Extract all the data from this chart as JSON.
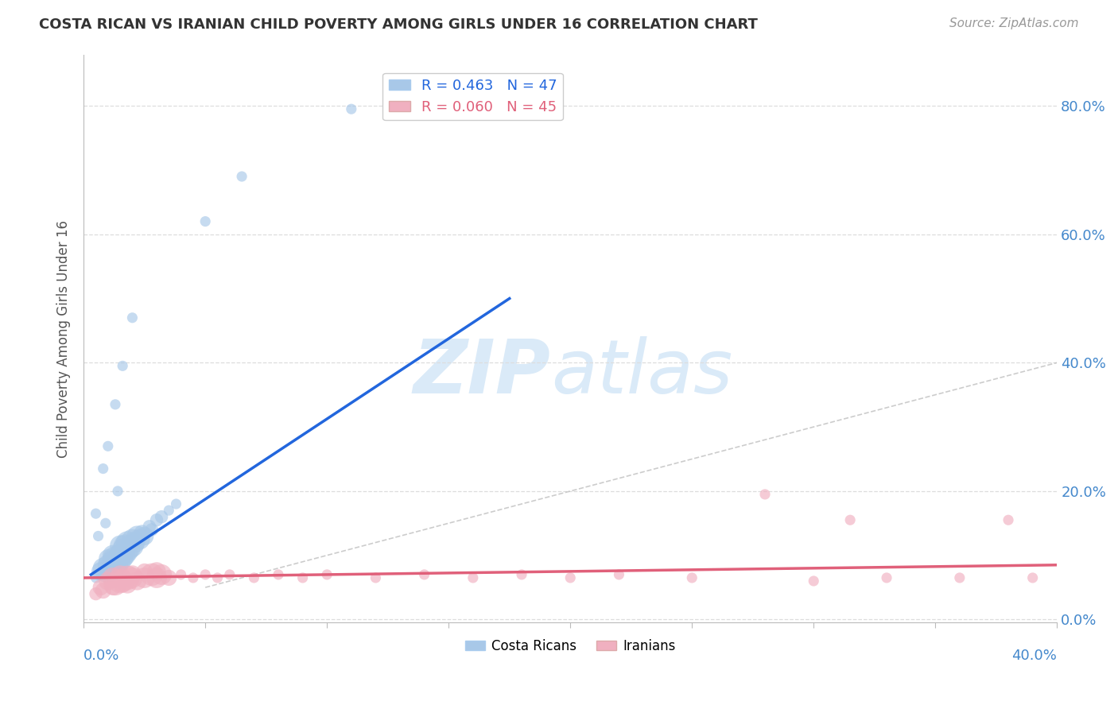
{
  "title": "COSTA RICAN VS IRANIAN CHILD POVERTY AMONG GIRLS UNDER 16 CORRELATION CHART",
  "source": "Source: ZipAtlas.com",
  "ylabel": "Child Poverty Among Girls Under 16",
  "ytick_values": [
    0.0,
    0.2,
    0.4,
    0.6,
    0.8
  ],
  "xlim": [
    0.0,
    0.4
  ],
  "ylim": [
    -0.005,
    0.88
  ],
  "costa_rican_color": "#a8c8e8",
  "iranian_color": "#f0b0c0",
  "costa_rican_line_color": "#2266dd",
  "iranian_line_color": "#e0607a",
  "diag_line_color": "#c0c0c0",
  "watermark_zip": "ZIP",
  "watermark_atlas": "atlas",
  "watermark_color": "#daeaf8",
  "background_color": "#ffffff",
  "grid_color": "#dddddd",
  "costa_ricans_scatter": [
    [
      0.005,
      0.065
    ],
    [
      0.007,
      0.075
    ],
    [
      0.008,
      0.08
    ],
    [
      0.009,
      0.07
    ],
    [
      0.01,
      0.085
    ],
    [
      0.01,
      0.095
    ],
    [
      0.011,
      0.075
    ],
    [
      0.012,
      0.09
    ],
    [
      0.012,
      0.1
    ],
    [
      0.013,
      0.08
    ],
    [
      0.013,
      0.095
    ],
    [
      0.014,
      0.085
    ],
    [
      0.015,
      0.09
    ],
    [
      0.015,
      0.1
    ],
    [
      0.015,
      0.115
    ],
    [
      0.016,
      0.095
    ],
    [
      0.016,
      0.11
    ],
    [
      0.017,
      0.1
    ],
    [
      0.017,
      0.115
    ],
    [
      0.018,
      0.105
    ],
    [
      0.018,
      0.12
    ],
    [
      0.019,
      0.11
    ],
    [
      0.02,
      0.115
    ],
    [
      0.02,
      0.125
    ],
    [
      0.021,
      0.12
    ],
    [
      0.022,
      0.13
    ],
    [
      0.023,
      0.125
    ],
    [
      0.024,
      0.135
    ],
    [
      0.025,
      0.13
    ],
    [
      0.027,
      0.145
    ],
    [
      0.028,
      0.14
    ],
    [
      0.03,
      0.155
    ],
    [
      0.032,
      0.16
    ],
    [
      0.035,
      0.17
    ],
    [
      0.038,
      0.18
    ],
    [
      0.005,
      0.165
    ],
    [
      0.008,
      0.235
    ],
    [
      0.01,
      0.27
    ],
    [
      0.013,
      0.335
    ],
    [
      0.016,
      0.395
    ],
    [
      0.02,
      0.47
    ],
    [
      0.05,
      0.62
    ],
    [
      0.065,
      0.69
    ],
    [
      0.11,
      0.795
    ],
    [
      0.006,
      0.13
    ],
    [
      0.009,
      0.15
    ],
    [
      0.014,
      0.2
    ]
  ],
  "iranians_scatter": [
    [
      0.005,
      0.04
    ],
    [
      0.007,
      0.05
    ],
    [
      0.008,
      0.045
    ],
    [
      0.01,
      0.06
    ],
    [
      0.012,
      0.05
    ],
    [
      0.012,
      0.065
    ],
    [
      0.013,
      0.055
    ],
    [
      0.015,
      0.06
    ],
    [
      0.015,
      0.07
    ],
    [
      0.016,
      0.06
    ],
    [
      0.018,
      0.065
    ],
    [
      0.018,
      0.055
    ],
    [
      0.02,
      0.065
    ],
    [
      0.02,
      0.07
    ],
    [
      0.022,
      0.06
    ],
    [
      0.025,
      0.065
    ],
    [
      0.025,
      0.075
    ],
    [
      0.028,
      0.07
    ],
    [
      0.03,
      0.065
    ],
    [
      0.03,
      0.075
    ],
    [
      0.032,
      0.07
    ],
    [
      0.035,
      0.065
    ],
    [
      0.04,
      0.07
    ],
    [
      0.045,
      0.065
    ],
    [
      0.05,
      0.07
    ],
    [
      0.055,
      0.065
    ],
    [
      0.06,
      0.07
    ],
    [
      0.07,
      0.065
    ],
    [
      0.08,
      0.07
    ],
    [
      0.09,
      0.065
    ],
    [
      0.1,
      0.07
    ],
    [
      0.12,
      0.065
    ],
    [
      0.14,
      0.07
    ],
    [
      0.16,
      0.065
    ],
    [
      0.18,
      0.07
    ],
    [
      0.2,
      0.065
    ],
    [
      0.22,
      0.07
    ],
    [
      0.25,
      0.065
    ],
    [
      0.28,
      0.195
    ],
    [
      0.3,
      0.06
    ],
    [
      0.315,
      0.155
    ],
    [
      0.33,
      0.065
    ],
    [
      0.36,
      0.065
    ],
    [
      0.38,
      0.155
    ],
    [
      0.39,
      0.065
    ]
  ],
  "cr_line_x": [
    0.003,
    0.175
  ],
  "cr_line_y": [
    0.07,
    0.5
  ],
  "ir_line_x": [
    0.0,
    0.4
  ],
  "ir_line_y": [
    0.065,
    0.085
  ]
}
